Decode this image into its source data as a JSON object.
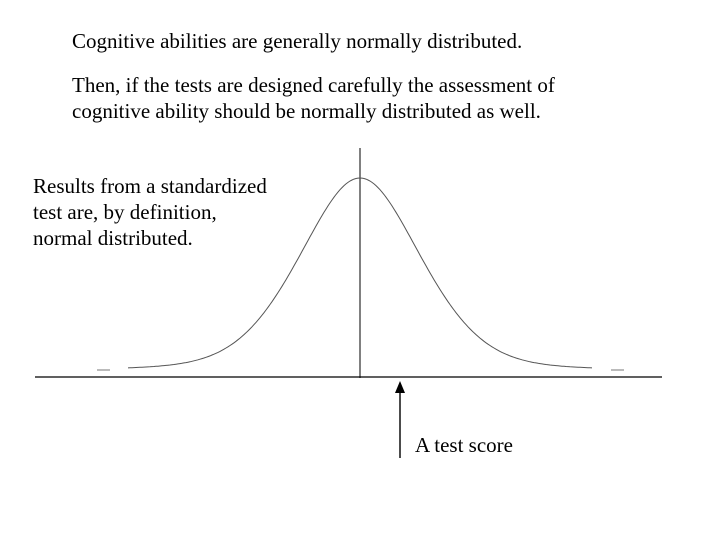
{
  "slide": {
    "heading": "Cognitive abilities are generally normally distributed.",
    "explanation": [
      "Then, if the tests are designed carefully the assessment of",
      "cognitive ability should be normally distributed as well."
    ],
    "side_note": [
      "Results from a standardized",
      "test are, by definition,",
      "normal distributed."
    ],
    "score_label": "A test score"
  },
  "diagram": {
    "curve_type": "normal distribution",
    "colors": {
      "curve": "#555555",
      "axis": "#000000",
      "mean_line": "#000000",
      "arrow": "#000000"
    }
  }
}
